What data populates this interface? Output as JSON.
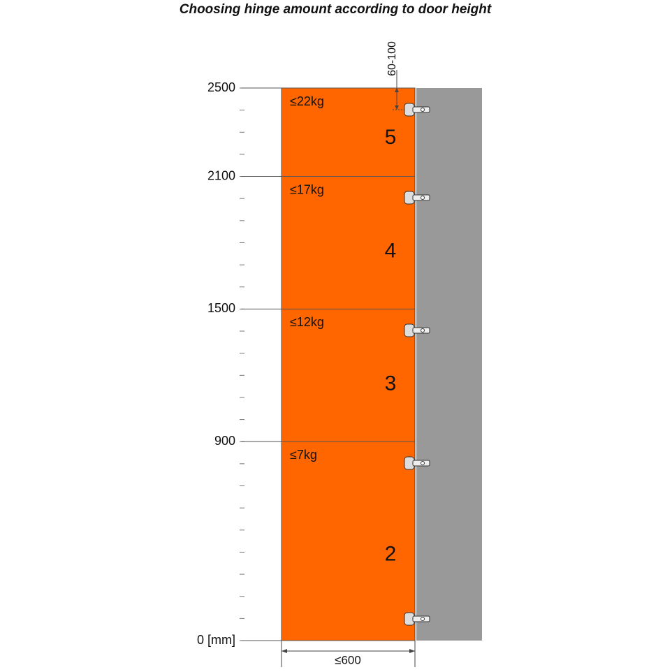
{
  "title": "Choosing hinge amount according to door height",
  "height_scale": {
    "ticks": [
      2500,
      2100,
      1500,
      900,
      {
        "value": 0,
        "label": "0 [mm]"
      }
    ]
  },
  "zones": [
    {
      "weight": "≤22kg",
      "hinges": 5
    },
    {
      "weight": "≤17kg",
      "hinges": 4
    },
    {
      "weight": "≤12kg",
      "hinges": 3
    },
    {
      "weight": "≤7kg",
      "hinges": 2
    }
  ],
  "dimensions": {
    "hinge_offset": "60-100",
    "width": "≤600"
  }
}
